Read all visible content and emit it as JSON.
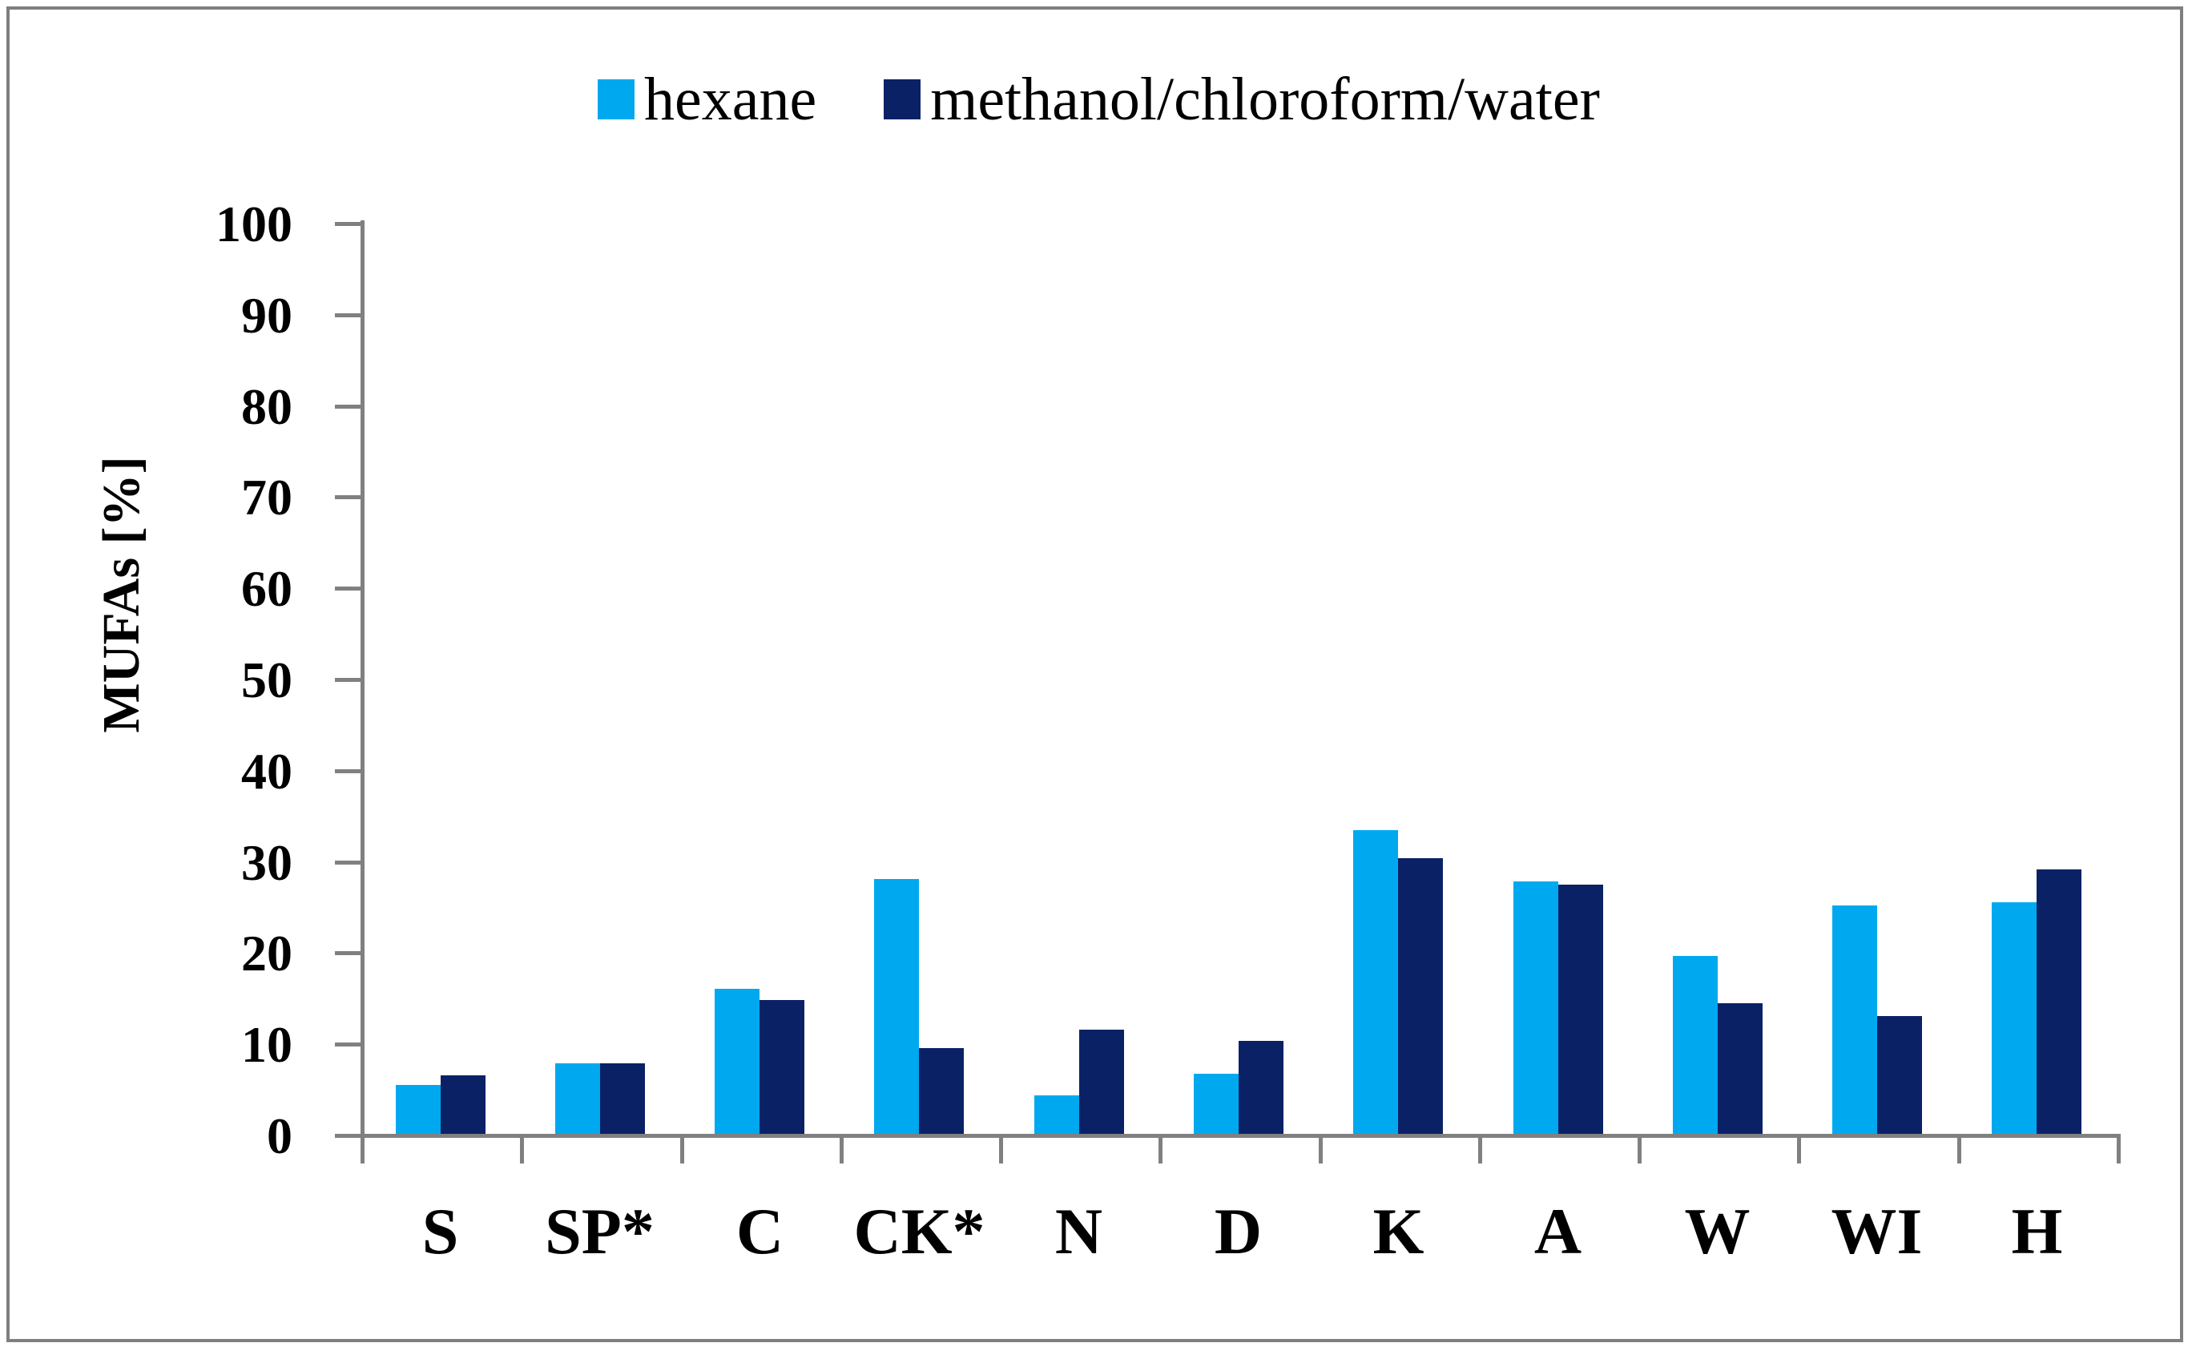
{
  "frame": {
    "background": "#FFFFFF",
    "border_color": "#7F7F7F"
  },
  "colors": {
    "axis": "#808080",
    "text": "#000000",
    "hexane_bar": "#00A9EF",
    "methanol_bar": "#0A2166"
  },
  "chart_data": {
    "type": "bar",
    "title": "",
    "xlabel": "",
    "ylabel": "MUFAs [%]",
    "ylim": [
      0,
      100
    ],
    "ytick_step": 10,
    "yticks": [
      0,
      10,
      20,
      30,
      40,
      50,
      60,
      70,
      80,
      90,
      100
    ],
    "grid": false,
    "legend_position": "top",
    "categories": [
      "S",
      "SP*",
      "C",
      "CK*",
      "N",
      "D",
      "K",
      "A",
      "W",
      "WI",
      "H"
    ],
    "series": [
      {
        "name": "hexane",
        "color": "#00A9EF",
        "values": [
          5.4,
          7.7,
          15.9,
          27.9,
          4.2,
          6.6,
          33.3,
          27.7,
          19.5,
          25.0,
          25.4
        ]
      },
      {
        "name": "methanol/chloroform/water",
        "color": "#0A2166",
        "values": [
          6.4,
          7.7,
          14.7,
          9.4,
          11.4,
          10.2,
          30.2,
          27.3,
          14.3,
          12.9,
          29.0
        ]
      }
    ]
  }
}
